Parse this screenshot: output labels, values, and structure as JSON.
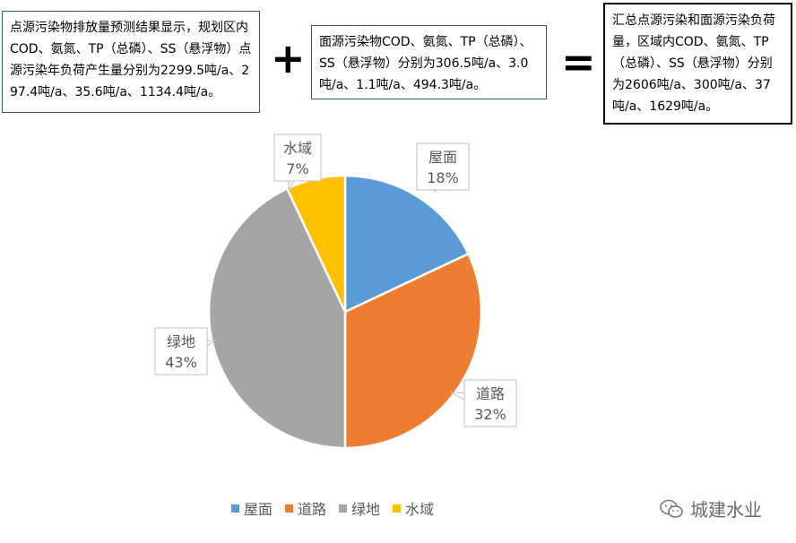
{
  "notes": {
    "point_source": "点源污染物排放量预测结果显示，规划区内COD、氨氮、TP（总磷）、SS（悬浮物）点源污染年负荷产生量分别为2299.5吨/a、297.4吨/a、35.6吨/a、1134.4吨/a。",
    "nonpoint_source": "面源污染物COD、氨氮、TP（总磷）、SS（悬浮物）分别为306.5吨/a、3.0吨/a、1.1吨/a、494.3吨/a。",
    "total": "汇总点源污染和面源污染负荷量，区域内COD、氨氮、TP（总磷）、SS（悬浮物）分别为2606吨/a、300吨/a、37吨/a、1629吨/a。"
  },
  "operators": {
    "plus": "+",
    "equals": "="
  },
  "chart_data": {
    "type": "pie",
    "categories": [
      "屋面",
      "道路",
      "绿地",
      "水域"
    ],
    "values": [
      18,
      32,
      43,
      7
    ],
    "value_labels": [
      "18%",
      "32%",
      "43%",
      "7%"
    ],
    "colors": [
      "#5B9BD5",
      "#ED7D31",
      "#A5A5A5",
      "#FFC000"
    ],
    "start_angle": "12 o'clock, clockwise",
    "legend_position": "bottom"
  },
  "watermark": {
    "text": "城建水业",
    "icon": "wechat-icon"
  }
}
